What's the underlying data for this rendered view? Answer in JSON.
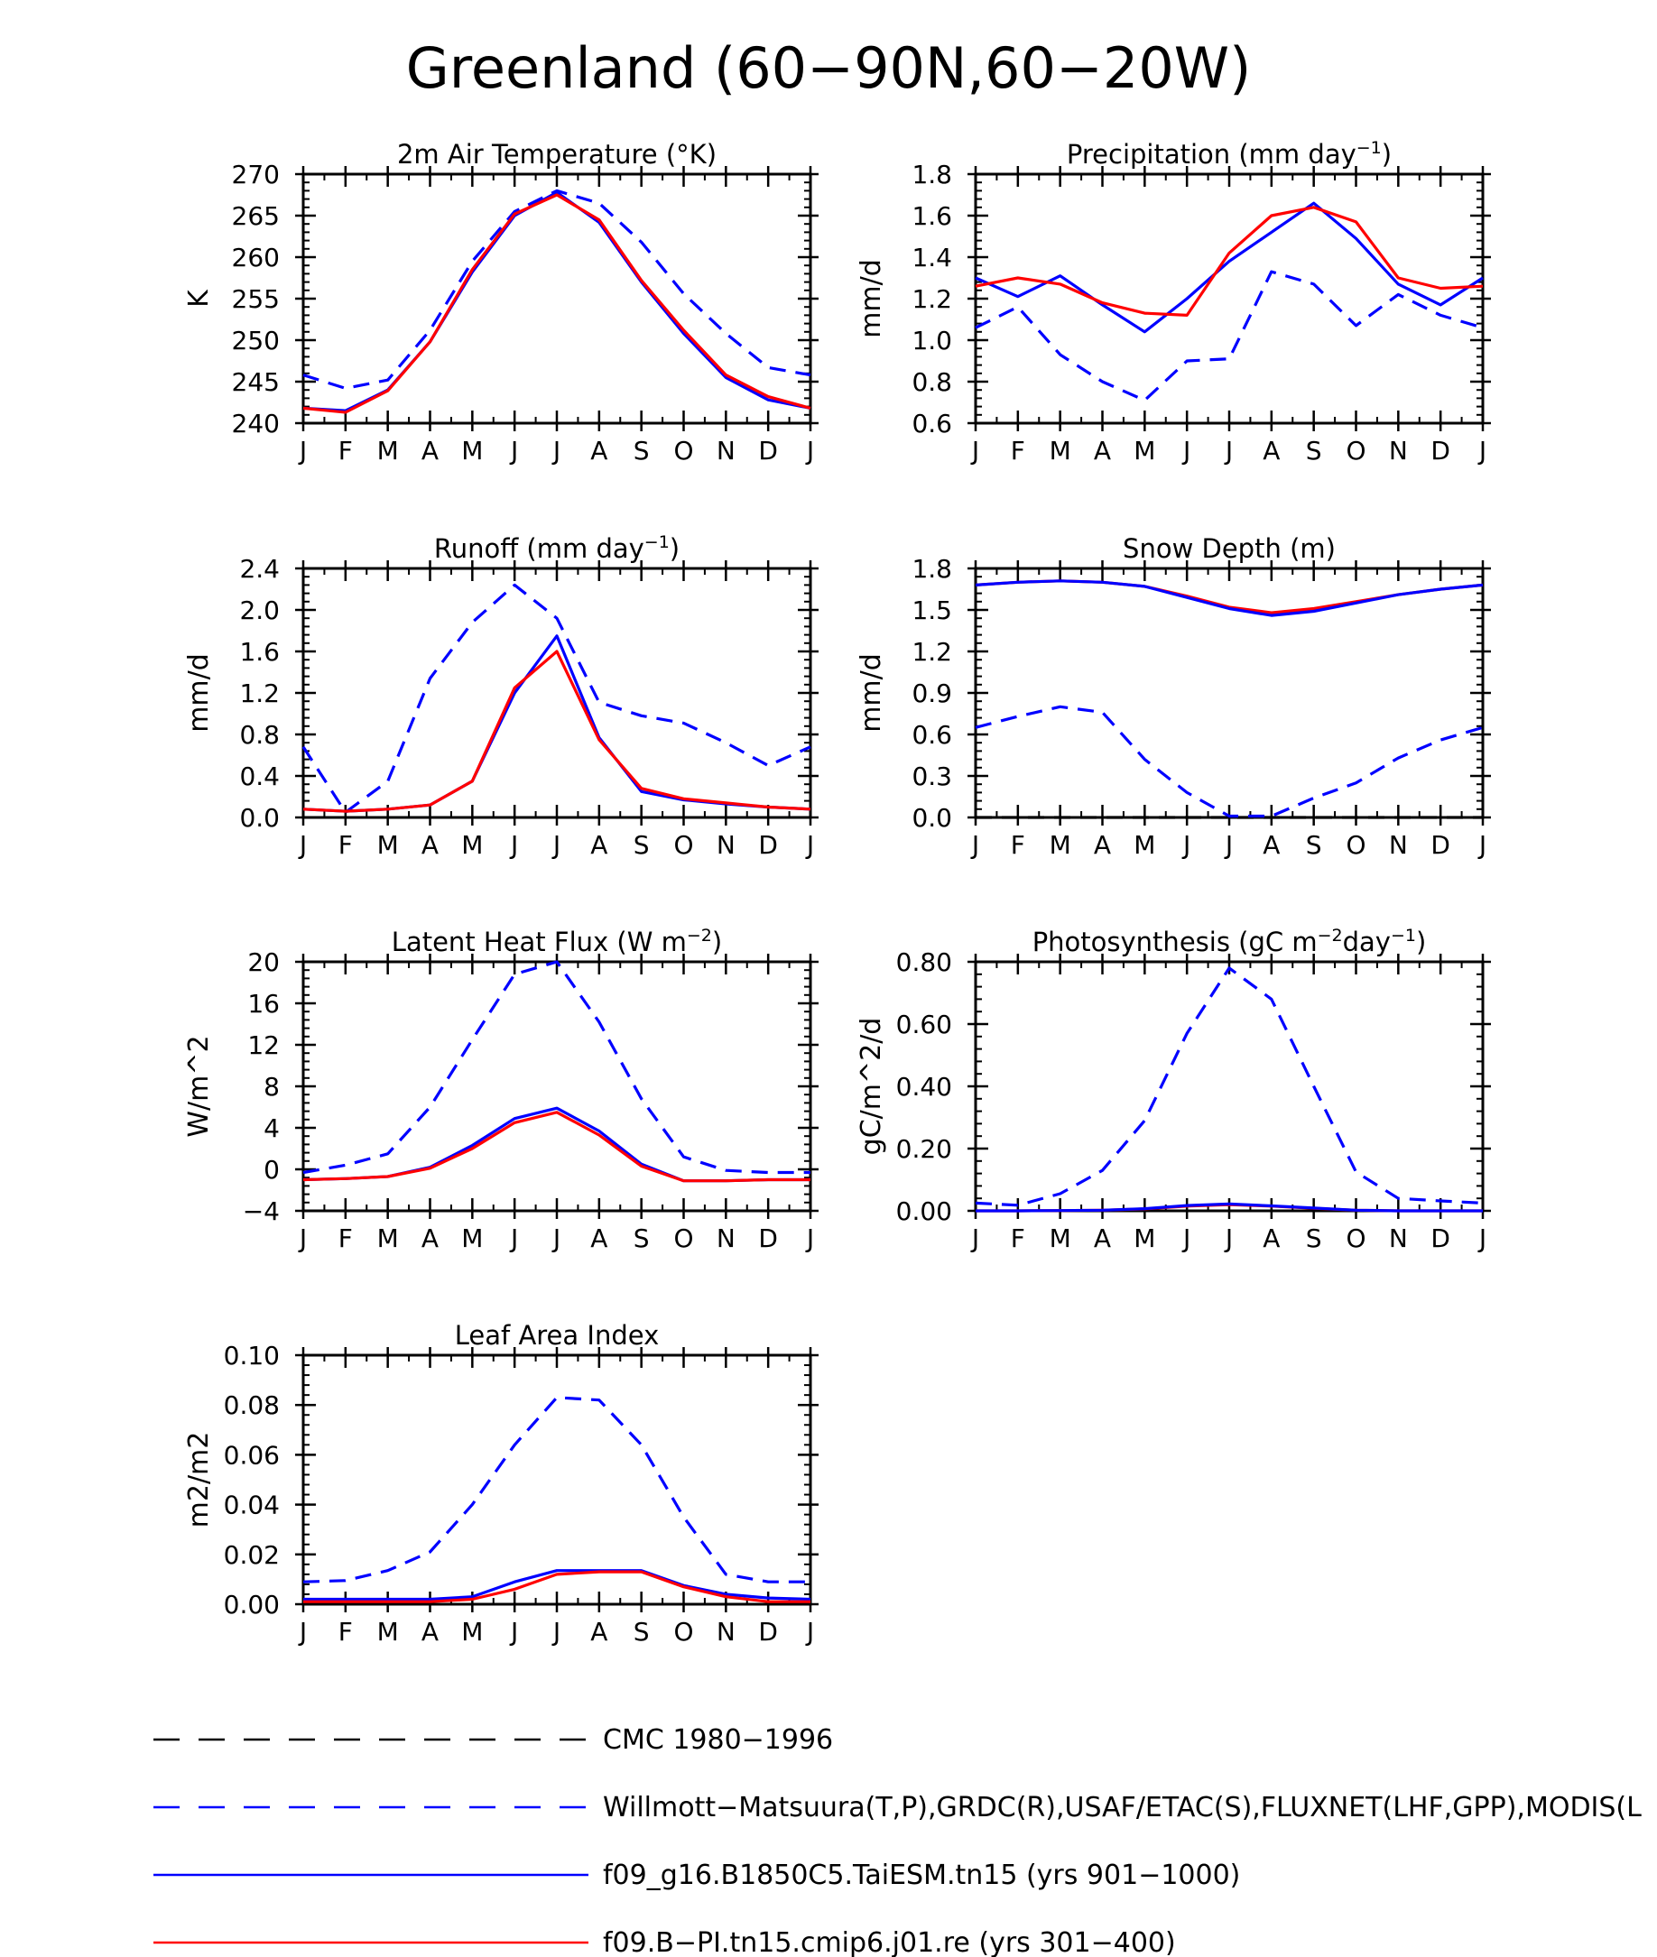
{
  "figure": {
    "title": "Greenland (60−90N,60−20W)"
  },
  "months": [
    "J",
    "F",
    "M",
    "A",
    "M",
    "J",
    "J",
    "A",
    "S",
    "O",
    "N",
    "D",
    "J"
  ],
  "chart_data": [
    {
      "type": "line",
      "title": "2m Air Temperature (°K)",
      "title_parts": [
        [
          "2m Air Temperature (°K)",
          ""
        ]
      ],
      "ylabel": "K",
      "ylim": [
        240,
        270
      ],
      "yticks": [
        240,
        245,
        250,
        255,
        260,
        265,
        270
      ],
      "yticklabels": [
        "240",
        "245",
        "250",
        "255",
        "260",
        "265",
        "270"
      ],
      "series": [
        {
          "name": "Willmott−Matsuura(T,P),GRDC(R),USAF/ETAC(S),FLUXNET(LHF,GPP),MODIS(L",
          "color": "#0000ff",
          "dash": "dashed",
          "values": [
            245.8,
            244.2,
            245.2,
            251.2,
            259.5,
            265.5,
            268.0,
            266.5,
            261.8,
            255.6,
            250.8,
            246.7,
            245.8
          ]
        },
        {
          "name": "f09_g16.B1850C5.TaiESM.tn15 (yrs 901−1000)",
          "color": "#0000ff",
          "dash": "solid",
          "values": [
            241.8,
            241.5,
            244.0,
            249.8,
            258.2,
            265.0,
            267.8,
            264.2,
            257.0,
            250.8,
            245.5,
            242.8,
            241.8
          ]
        },
        {
          "name": "f09.B−PI.tn15.cmip6.j01.re (yrs 301−400)",
          "color": "#ff0000",
          "dash": "solid",
          "values": [
            241.8,
            241.3,
            243.9,
            249.8,
            258.5,
            265.2,
            267.5,
            264.5,
            257.2,
            251.2,
            245.8,
            243.2,
            241.8
          ]
        }
      ]
    },
    {
      "type": "line",
      "title": "Precipitation (mm day⁻¹)",
      "title_parts": [
        [
          "Precipitation (mm day",
          ""
        ],
        [
          "−1",
          "sup"
        ],
        [
          ")",
          ""
        ]
      ],
      "ylabel": "mm/d",
      "ylim": [
        0.6,
        1.8
      ],
      "yticks": [
        0.6,
        0.8,
        1.0,
        1.2,
        1.4,
        1.6,
        1.8
      ],
      "yticklabels": [
        "0.6",
        "0.8",
        "1.0",
        "1.2",
        "1.4",
        "1.6",
        "1.8"
      ],
      "series": [
        {
          "name": "Willmott−Matsuura(T,P),GRDC(R),USAF/ETAC(S),FLUXNET(LHF,GPP),MODIS(L",
          "color": "#0000ff",
          "dash": "dashed",
          "values": [
            1.06,
            1.16,
            0.93,
            0.8,
            0.71,
            0.9,
            0.91,
            1.33,
            1.27,
            1.07,
            1.22,
            1.12,
            1.06
          ]
        },
        {
          "name": "f09_g16.B1850C5.TaiESM.tn15 (yrs 901−1000)",
          "color": "#0000ff",
          "dash": "solid",
          "values": [
            1.3,
            1.21,
            1.31,
            1.17,
            1.04,
            1.2,
            1.38,
            1.52,
            1.66,
            1.49,
            1.27,
            1.17,
            1.3
          ]
        },
        {
          "name": "f09.B−PI.tn15.cmip6.j01.re (yrs 301−400)",
          "color": "#ff0000",
          "dash": "solid",
          "values": [
            1.26,
            1.3,
            1.27,
            1.18,
            1.13,
            1.12,
            1.42,
            1.6,
            1.64,
            1.57,
            1.3,
            1.25,
            1.26
          ]
        }
      ]
    },
    {
      "type": "line",
      "title": "Runoff (mm day⁻¹)",
      "title_parts": [
        [
          "Runoff (mm day",
          ""
        ],
        [
          "−1",
          "sup"
        ],
        [
          ")",
          ""
        ]
      ],
      "ylabel": "mm/d",
      "ylim": [
        0.0,
        2.4
      ],
      "yticks": [
        0.0,
        0.4,
        0.8,
        1.2,
        1.6,
        2.0,
        2.4
      ],
      "yticklabels": [
        "0.0",
        "0.4",
        "0.8",
        "1.2",
        "1.6",
        "2.0",
        "2.4"
      ],
      "series": [
        {
          "name": "Willmott−Matsuura(T,P),GRDC(R),USAF/ETAC(S),FLUXNET(LHF,GPP),MODIS(L",
          "color": "#0000ff",
          "dash": "dashed",
          "values": [
            0.68,
            0.05,
            0.35,
            1.34,
            1.88,
            2.24,
            1.92,
            1.11,
            0.98,
            0.91,
            0.72,
            0.5,
            0.68
          ]
        },
        {
          "name": "f09_g16.B1850C5.TaiESM.tn15 (yrs 901−1000)",
          "color": "#0000ff",
          "dash": "solid",
          "values": [
            0.08,
            0.06,
            0.08,
            0.12,
            0.35,
            1.2,
            1.75,
            0.77,
            0.25,
            0.17,
            0.13,
            0.1,
            0.08
          ]
        },
        {
          "name": "f09.B−PI.tn15.cmip6.j01.re (yrs 301−400)",
          "color": "#ff0000",
          "dash": "solid",
          "values": [
            0.08,
            0.06,
            0.08,
            0.12,
            0.35,
            1.25,
            1.6,
            0.75,
            0.28,
            0.18,
            0.14,
            0.1,
            0.08
          ]
        }
      ]
    },
    {
      "type": "line",
      "title": "Snow Depth (m)",
      "title_parts": [
        [
          "Snow Depth (m)",
          ""
        ]
      ],
      "ylabel": "mm/d",
      "ylim": [
        0.0,
        1.8
      ],
      "yticks": [
        0.0,
        0.3,
        0.6,
        0.9,
        1.2,
        1.5,
        1.8
      ],
      "yticklabels": [
        "0.0",
        "0.3",
        "0.6",
        "0.9",
        "1.2",
        "1.5",
        "1.8"
      ],
      "series": [
        {
          "name": "CMC 1980−1996",
          "color": "#000000",
          "dash": "dashed",
          "values": [
            0,
            0,
            0,
            0,
            0,
            0,
            0,
            0,
            0,
            0,
            0,
            0,
            0
          ]
        },
        {
          "name": "Willmott−Matsuura(T,P),GRDC(R),USAF/ETAC(S),FLUXNET(LHF,GPP),MODIS(L",
          "color": "#0000ff",
          "dash": "dashed",
          "values": [
            0.65,
            0.73,
            0.8,
            0.76,
            0.42,
            0.18,
            0.01,
            0.01,
            0.14,
            0.25,
            0.43,
            0.56,
            0.65
          ]
        },
        {
          "name": "f09.B−PI.tn15.cmip6.j01.re (yrs 301−400)",
          "color": "#ff0000",
          "dash": "solid",
          "values": [
            1.68,
            1.7,
            1.71,
            1.7,
            1.67,
            1.6,
            1.52,
            1.48,
            1.51,
            1.56,
            1.61,
            1.65,
            1.68
          ]
        },
        {
          "name": "f09_g16.B1850C5.TaiESM.tn15 (yrs 901−1000)",
          "color": "#0000ff",
          "dash": "solid",
          "values": [
            1.68,
            1.7,
            1.71,
            1.7,
            1.67,
            1.59,
            1.51,
            1.46,
            1.49,
            1.55,
            1.61,
            1.65,
            1.68
          ]
        }
      ]
    },
    {
      "type": "line",
      "title": "Latent Heat Flux (W m⁻²)",
      "title_parts": [
        [
          "Latent Heat Flux (W m",
          ""
        ],
        [
          "−2",
          "sup"
        ],
        [
          ")",
          ""
        ]
      ],
      "ylabel": "W/m^2",
      "ylim": [
        -4,
        20
      ],
      "yticks": [
        -4,
        0,
        4,
        8,
        12,
        16,
        20
      ],
      "yticklabels": [
        "−4",
        "0",
        "4",
        "8",
        "12",
        "16",
        "20"
      ],
      "series": [
        {
          "name": "Willmott−Matsuura(T,P),GRDC(R),USAF/ETAC(S),FLUXNET(LHF,GPP),MODIS(L",
          "color": "#0000ff",
          "dash": "dashed",
          "values": [
            -0.3,
            0.4,
            1.5,
            6.0,
            12.5,
            18.8,
            20.0,
            14.2,
            6.8,
            1.2,
            -0.1,
            -0.3,
            -0.3
          ]
        },
        {
          "name": "f09_g16.B1850C5.TaiESM.tn15 (yrs 901−1000)",
          "color": "#0000ff",
          "dash": "solid",
          "values": [
            -1.0,
            -0.9,
            -0.7,
            0.2,
            2.3,
            4.9,
            5.9,
            3.7,
            0.5,
            -1.1,
            -1.1,
            -1.0,
            -1.0
          ]
        },
        {
          "name": "f09.B−PI.tn15.cmip6.j01.re (yrs 301−400)",
          "color": "#ff0000",
          "dash": "solid",
          "values": [
            -1.0,
            -0.9,
            -0.7,
            0.1,
            2.0,
            4.5,
            5.5,
            3.3,
            0.3,
            -1.1,
            -1.1,
            -1.0,
            -1.0
          ]
        }
      ]
    },
    {
      "type": "line",
      "title": "Photosynthesis (gC m⁻²day⁻¹)",
      "title_parts": [
        [
          "Photosynthesis (gC m",
          ""
        ],
        [
          "−2",
          "sup"
        ],
        [
          "day",
          ""
        ],
        [
          "−1",
          "sup"
        ],
        [
          ")",
          ""
        ]
      ],
      "ylabel": "gC/m^2/d",
      "ylim": [
        0.0,
        0.8
      ],
      "yticks": [
        0.0,
        0.2,
        0.4,
        0.6,
        0.8
      ],
      "yticklabels": [
        "0.00",
        "0.20",
        "0.40",
        "0.60",
        "0.80"
      ],
      "series": [
        {
          "name": "Willmott−Matsuura(T,P),GRDC(R),USAF/ETAC(S),FLUXNET(LHF,GPP),MODIS(L",
          "color": "#0000ff",
          "dash": "dashed",
          "values": [
            0.025,
            0.018,
            0.055,
            0.13,
            0.29,
            0.57,
            0.78,
            0.68,
            0.4,
            0.125,
            0.04,
            0.032,
            0.025
          ]
        },
        {
          "name": "f09.B−PI.tn15.cmip6.j01.re (yrs 301−400)",
          "color": "#ff0000",
          "dash": "solid",
          "values": [
            0.0,
            0.0,
            0.001,
            0.002,
            0.006,
            0.015,
            0.02,
            0.015,
            0.008,
            0.002,
            0.0,
            0.0,
            0.0
          ]
        },
        {
          "name": "f09_g16.B1850C5.TaiESM.tn15 (yrs 901−1000)",
          "color": "#0000ff",
          "dash": "solid",
          "values": [
            0.0,
            0.0,
            0.001,
            0.002,
            0.007,
            0.017,
            0.022,
            0.016,
            0.009,
            0.002,
            0.0,
            0.0,
            0.0
          ]
        }
      ]
    },
    {
      "type": "line",
      "title": "Leaf Area Index",
      "title_parts": [
        [
          "Leaf Area Index",
          ""
        ]
      ],
      "ylabel": "m2/m2",
      "ylim": [
        0.0,
        0.1
      ],
      "yticks": [
        0.0,
        0.02,
        0.04,
        0.06,
        0.08,
        0.1
      ],
      "yticklabels": [
        "0.00",
        "0.02",
        "0.04",
        "0.06",
        "0.08",
        "0.10"
      ],
      "series": [
        {
          "name": "Willmott−Matsuura(T,P),GRDC(R),USAF/ETAC(S),FLUXNET(LHF,GPP),MODIS(L",
          "color": "#0000ff",
          "dash": "dashed",
          "values": [
            0.009,
            0.0095,
            0.0135,
            0.021,
            0.04,
            0.064,
            0.083,
            0.082,
            0.064,
            0.035,
            0.012,
            0.009,
            0.009
          ]
        },
        {
          "name": "f09_g16.B1850C5.TaiESM.tn15 (yrs 901−1000)",
          "color": "#0000ff",
          "dash": "solid",
          "values": [
            0.002,
            0.002,
            0.002,
            0.002,
            0.003,
            0.009,
            0.0135,
            0.0135,
            0.0135,
            0.0075,
            0.004,
            0.0025,
            0.002
          ]
        },
        {
          "name": "f09.B−PI.tn15.cmip6.j01.re (yrs 301−400)",
          "color": "#ff0000",
          "dash": "solid",
          "values": [
            0.001,
            0.001,
            0.001,
            0.001,
            0.002,
            0.006,
            0.012,
            0.013,
            0.013,
            0.007,
            0.003,
            0.001,
            0.001
          ]
        }
      ]
    }
  ],
  "legend": [
    {
      "label": "CMC 1980−1996",
      "color": "#000000",
      "dash": "dashed"
    },
    {
      "label": "Willmott−Matsuura(T,P),GRDC(R),USAF/ETAC(S),FLUXNET(LHF,GPP),MODIS(L",
      "color": "#0000ff",
      "dash": "dashed"
    },
    {
      "label": "f09_g16.B1850C5.TaiESM.tn15 (yrs 901−1000)",
      "color": "#0000ff",
      "dash": "solid"
    },
    {
      "label": "f09.B−PI.tn15.cmip6.j01.re (yrs 301−400)",
      "color": "#ff0000",
      "dash": "solid"
    }
  ]
}
